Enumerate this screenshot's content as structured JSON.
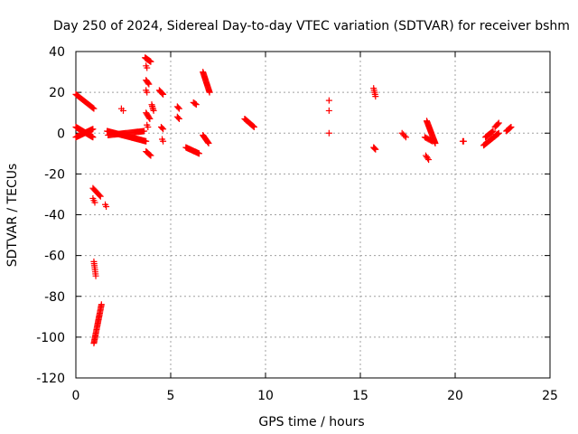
{
  "chart_data": {
    "type": "scatter",
    "title": "Day 250 of 2024, Sidereal Day-to-day VTEC variation (SDTVAR) for receiver bshm",
    "xlabel": "GPS time / hours",
    "ylabel": "SDTVAR / TECUs",
    "xlim": [
      0,
      25
    ],
    "ylim": [
      -120,
      40
    ],
    "xticks": [
      0,
      5,
      10,
      15,
      20,
      25
    ],
    "yticks": [
      -120,
      -100,
      -80,
      -60,
      -40,
      -20,
      0,
      20,
      40
    ],
    "grid": true,
    "legend": "none",
    "marker": "+",
    "color": "#ff0000",
    "segments": [
      {
        "from": [
          0.0,
          19
        ],
        "to": [
          0.95,
          12
        ],
        "n": 22
      },
      {
        "from": [
          0.0,
          3
        ],
        "to": [
          0.9,
          -2
        ],
        "n": 40
      },
      {
        "from": [
          0.0,
          -2
        ],
        "to": [
          0.9,
          2
        ],
        "n": 30
      },
      {
        "from": [
          0.9,
          -27
        ],
        "to": [
          1.3,
          -31
        ],
        "n": 10
      },
      {
        "from": [
          0.9,
          -32
        ],
        "to": [
          1.0,
          -34
        ],
        "n": 3
      },
      {
        "from": [
          1.55,
          -35
        ],
        "to": [
          1.6,
          -36
        ],
        "n": 2
      },
      {
        "from": [
          0.95,
          -63
        ],
        "to": [
          1.05,
          -70
        ],
        "n": 8
      },
      {
        "from": [
          0.95,
          -103
        ],
        "to": [
          1.35,
          -84
        ],
        "n": 32
      },
      {
        "from": [
          1.65,
          1
        ],
        "to": [
          3.7,
          -4
        ],
        "n": 60
      },
      {
        "from": [
          1.7,
          -1
        ],
        "to": [
          3.6,
          1
        ],
        "n": 40
      },
      {
        "from": [
          2.4,
          12
        ],
        "to": [
          2.5,
          11
        ],
        "n": 2
      },
      {
        "from": [
          3.65,
          37
        ],
        "to": [
          3.95,
          35
        ],
        "n": 12
      },
      {
        "from": [
          3.7,
          33
        ],
        "to": [
          3.75,
          32
        ],
        "n": 2
      },
      {
        "from": [
          3.7,
          26
        ],
        "to": [
          3.85,
          24
        ],
        "n": 5
      },
      {
        "from": [
          3.7,
          21
        ],
        "to": [
          3.75,
          20
        ],
        "n": 2
      },
      {
        "from": [
          3.7,
          10
        ],
        "to": [
          3.9,
          7
        ],
        "n": 7
      },
      {
        "from": [
          3.75,
          4
        ],
        "to": [
          3.8,
          3
        ],
        "n": 2
      },
      {
        "from": [
          3.7,
          -9
        ],
        "to": [
          3.95,
          -11
        ],
        "n": 7
      },
      {
        "from": [
          4.0,
          14
        ],
        "to": [
          4.1,
          11
        ],
        "n": 5
      },
      {
        "from": [
          4.4,
          21
        ],
        "to": [
          4.6,
          19
        ],
        "n": 6
      },
      {
        "from": [
          4.5,
          3
        ],
        "to": [
          4.6,
          2
        ],
        "n": 3
      },
      {
        "from": [
          4.55,
          -3
        ],
        "to": [
          4.6,
          -4
        ],
        "n": 2
      },
      {
        "from": [
          5.35,
          13
        ],
        "to": [
          5.45,
          12
        ],
        "n": 3
      },
      {
        "from": [
          5.35,
          8
        ],
        "to": [
          5.45,
          7
        ],
        "n": 3
      },
      {
        "from": [
          5.8,
          -7
        ],
        "to": [
          6.5,
          -10
        ],
        "n": 20
      },
      {
        "from": [
          6.2,
          15
        ],
        "to": [
          6.35,
          14
        ],
        "n": 4
      },
      {
        "from": [
          6.7,
          30
        ],
        "to": [
          7.05,
          20
        ],
        "n": 22
      },
      {
        "from": [
          6.7,
          -1
        ],
        "to": [
          7.0,
          -5
        ],
        "n": 10
      },
      {
        "from": [
          8.9,
          7
        ],
        "to": [
          9.4,
          3
        ],
        "n": 14
      },
      {
        "from": [
          13.35,
          16
        ],
        "to": [
          13.35,
          16
        ],
        "n": 1
      },
      {
        "from": [
          13.35,
          11
        ],
        "to": [
          13.35,
          11
        ],
        "n": 1
      },
      {
        "from": [
          13.35,
          0
        ],
        "to": [
          13.35,
          0
        ],
        "n": 1
      },
      {
        "from": [
          15.7,
          22
        ],
        "to": [
          15.8,
          18
        ],
        "n": 5
      },
      {
        "from": [
          15.7,
          -7
        ],
        "to": [
          15.8,
          -8
        ],
        "n": 4
      },
      {
        "from": [
          17.2,
          0
        ],
        "to": [
          17.4,
          -2
        ],
        "n": 4
      },
      {
        "from": [
          18.5,
          6
        ],
        "to": [
          18.95,
          -5
        ],
        "n": 25
      },
      {
        "from": [
          18.4,
          -2
        ],
        "to": [
          18.8,
          -4
        ],
        "n": 8
      },
      {
        "from": [
          18.45,
          -11
        ],
        "to": [
          18.6,
          -13
        ],
        "n": 4
      },
      {
        "from": [
          20.4,
          -4
        ],
        "to": [
          20.45,
          -4
        ],
        "n": 2
      },
      {
        "from": [
          21.5,
          -6
        ],
        "to": [
          22.3,
          0
        ],
        "n": 20
      },
      {
        "from": [
          21.6,
          -2
        ],
        "to": [
          22.0,
          1
        ],
        "n": 12
      },
      {
        "from": [
          22.1,
          3
        ],
        "to": [
          22.3,
          5
        ],
        "n": 5
      },
      {
        "from": [
          22.7,
          1
        ],
        "to": [
          22.95,
          3
        ],
        "n": 8
      }
    ]
  }
}
